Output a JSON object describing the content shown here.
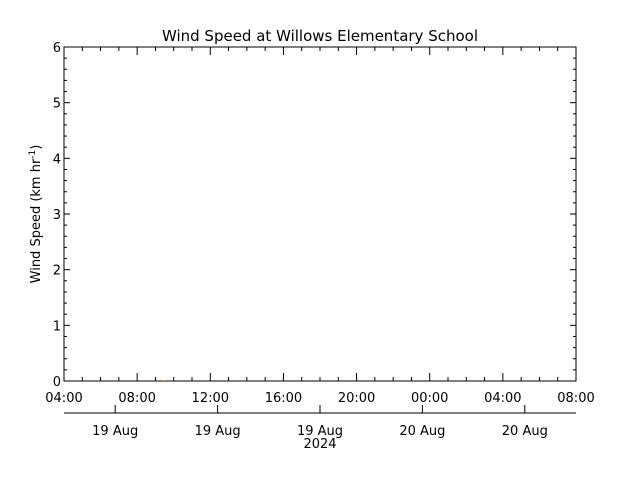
{
  "chart_data": {
    "type": "line",
    "title": "Wind Speed at Willows Elementary School",
    "ylabel": "Wind Speed (km hr",
    "ylabel_superscript": "-1",
    "ylabel_suffix": ")",
    "ylim": [
      0,
      6
    ],
    "yticks": [
      "0",
      "1",
      "2",
      "3",
      "4",
      "5",
      "6"
    ],
    "xlim": [
      "2024-08-19 04:00",
      "2024-08-20 08:00"
    ],
    "xticks": [
      "04:00",
      "08:00",
      "12:00",
      "16:00",
      "20:00",
      "00:00",
      "04:00",
      "08:00"
    ],
    "date_ticks": [
      "19 Aug",
      "19 Aug",
      "19 Aug",
      "20 Aug",
      "20 Aug"
    ],
    "year_label": "2024",
    "grid": false,
    "series": [
      {
        "color": "#ff8c00",
        "x": [
          "2024-08-19 09:30"
        ],
        "y": [
          0
        ]
      }
    ]
  }
}
